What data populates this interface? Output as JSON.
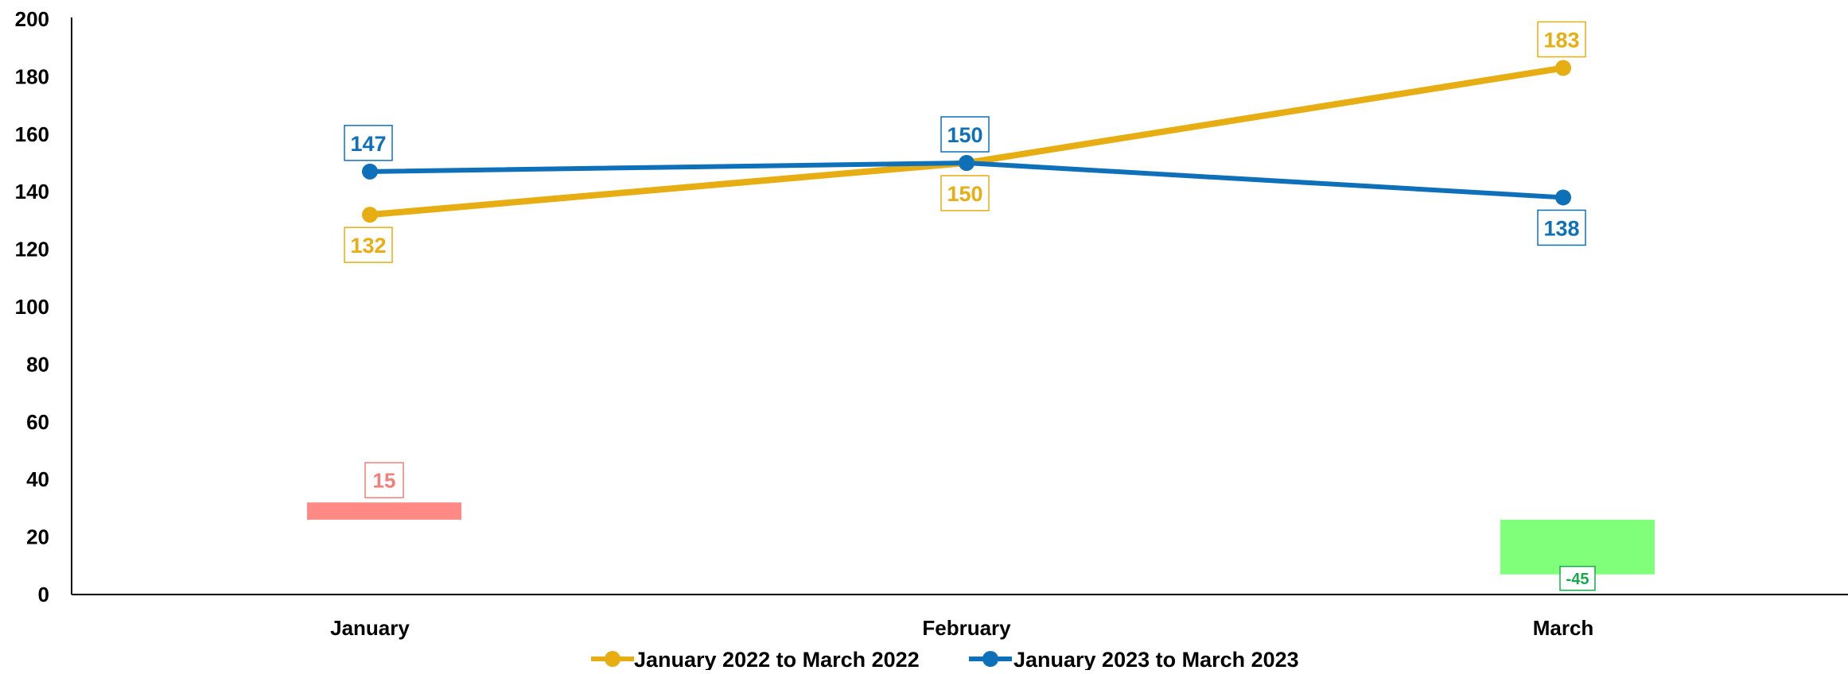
{
  "chart_data": {
    "type": "line",
    "title": "",
    "xlabel": "",
    "ylabel": "",
    "categories": [
      "January",
      "February",
      "March"
    ],
    "ylim": [
      0,
      200
    ],
    "yticks": [
      0,
      20,
      40,
      60,
      80,
      100,
      120,
      140,
      160,
      180,
      200
    ],
    "grid": false,
    "legend_position": "bottom-center",
    "series": [
      {
        "name": "January 2022 to March 2022",
        "values": [
          132,
          150,
          183
        ],
        "color": "#E6AE12",
        "label_position": [
          "below",
          "below",
          "above"
        ]
      },
      {
        "name": "January 2023 to March 2023",
        "values": [
          147,
          150,
          138
        ],
        "color": "#0F70BA",
        "label_position": [
          "above",
          "above",
          "below"
        ]
      }
    ],
    "difference_bars": [
      {
        "category": "January",
        "label": "15",
        "range": [
          26,
          32
        ],
        "color": "#FF8A85",
        "label_color": "#F47F7A",
        "label_position": "above"
      },
      {
        "category": "March",
        "label": "-45",
        "range": [
          7,
          26
        ],
        "color": "#80FF7A",
        "label_color": "#18A84C",
        "label_position": "inside-bottom"
      }
    ]
  }
}
